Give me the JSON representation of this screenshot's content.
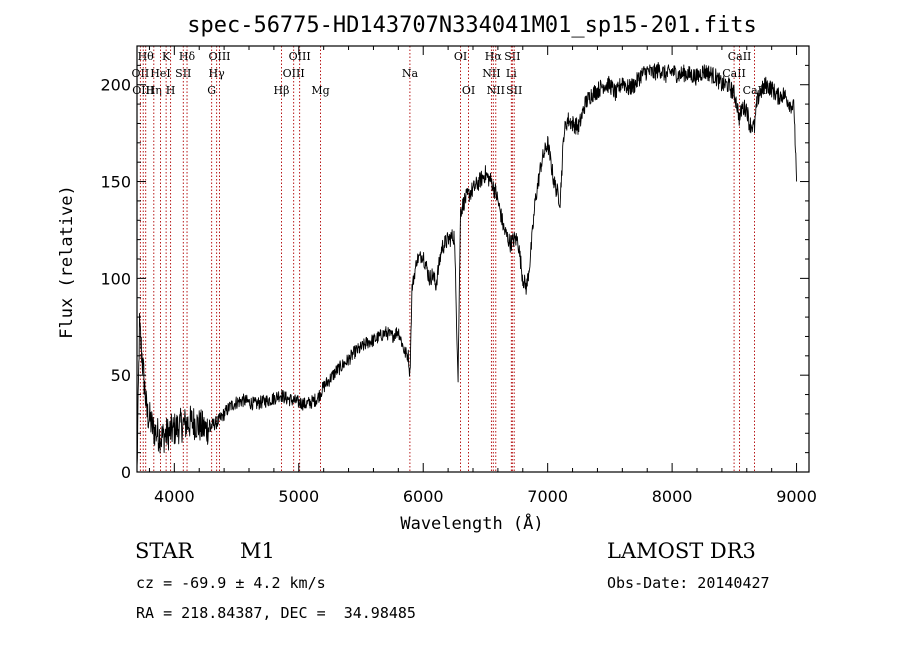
{
  "chart_data": {
    "type": "line",
    "title": "spec-56775-HD143707N334041M01_sp15-201.fits",
    "xlabel": "Wavelength (Å)",
    "ylabel": "Flux (relative)",
    "xlim": [
      3700,
      9100
    ],
    "ylim": [
      0,
      220
    ],
    "xticks": [
      4000,
      5000,
      6000,
      7000,
      8000,
      9000
    ],
    "yticks": [
      0,
      50,
      100,
      150,
      200
    ],
    "series": [
      {
        "x": [
          3700,
          3720,
          3740,
          3760,
          3780,
          3800,
          3830,
          3860,
          3900,
          3950,
          4000,
          4050,
          4100,
          4150,
          4200,
          4250,
          4300,
          4350,
          4400,
          4450,
          4500,
          4550,
          4600,
          4650,
          4700,
          4750,
          4800,
          4850,
          4900,
          4950,
          5000,
          5050,
          5100,
          5150,
          5200,
          5250,
          5300,
          5350,
          5400,
          5450,
          5500,
          5550,
          5600,
          5650,
          5700,
          5750,
          5800,
          5850,
          5880,
          5893,
          5910,
          5950,
          6000,
          6050,
          6080,
          6100,
          6150,
          6200,
          6250,
          6280,
          6300,
          6320,
          6330,
          6350,
          6400,
          6450,
          6500,
          6520,
          6550,
          6563,
          6580,
          6600,
          6650,
          6700,
          6730,
          6760,
          6800,
          6830,
          6860,
          6900,
          6950,
          7000,
          7050,
          7100,
          7130,
          7160,
          7200,
          7250,
          7300,
          7350,
          7400,
          7450,
          7500,
          7550,
          7600,
          7650,
          7700,
          7750,
          7800,
          7850,
          7900,
          7950,
          8000,
          8050,
          8100,
          8150,
          8200,
          8250,
          8300,
          8350,
          8400,
          8450,
          8500,
          8520,
          8542,
          8560,
          8600,
          8620,
          8662,
          8680,
          8700,
          8750,
          8800,
          8850,
          8900,
          8950,
          8980,
          9000
        ],
        "y": [
          0,
          75,
          60,
          45,
          30,
          28,
          22,
          20,
          18,
          20,
          22,
          24,
          25,
          26,
          24,
          22,
          24,
          26,
          30,
          34,
          36,
          37,
          36,
          35,
          36,
          37,
          38,
          40,
          38,
          37,
          36,
          35,
          36,
          38,
          44,
          48,
          52,
          55,
          58,
          62,
          64,
          67,
          68,
          70,
          72,
          70,
          73,
          62,
          60,
          50,
          95,
          110,
          112,
          100,
          102,
          96,
          116,
          120,
          122,
          50,
          135,
          138,
          140,
          142,
          146,
          150,
          154,
          152,
          150,
          147,
          145,
          140,
          125,
          118,
          120,
          120,
          100,
          95,
          110,
          140,
          160,
          170,
          150,
          140,
          175,
          182,
          180,
          178,
          190,
          195,
          197,
          200,
          200,
          195,
          202,
          198,
          200,
          205,
          207,
          206,
          208,
          205,
          207,
          205,
          206,
          205,
          204,
          207,
          206,
          204,
          200,
          200,
          195,
          190,
          182,
          188,
          188,
          180,
          178,
          190,
          195,
          200,
          198,
          194,
          195,
          190,
          188,
          150
        ]
      }
    ],
    "line_markers": [
      {
        "wl": 3727,
        "label": "OII",
        "row": 1
      },
      {
        "wl": 3750,
        "label": "OIII",
        "row": 2
      },
      {
        "wl": 3770,
        "label": "Hθ",
        "row": 0
      },
      {
        "wl": 3835,
        "label": "Hη",
        "row": 2
      },
      {
        "wl": 3889,
        "label": "HeI",
        "row": 1
      },
      {
        "wl": 3934,
        "label": "K",
        "row": 0
      },
      {
        "wl": 3970,
        "label": "H",
        "row": 2
      },
      {
        "wl": 4072,
        "label": "SII",
        "row": 1
      },
      {
        "wl": 4102,
        "label": "Hδ",
        "row": 0
      },
      {
        "wl": 4300,
        "label": "G",
        "row": 2
      },
      {
        "wl": 4340,
        "label": "Hγ",
        "row": 1
      },
      {
        "wl": 4363,
        "label": "OIII",
        "row": 0
      },
      {
        "wl": 4861,
        "label": "Hβ",
        "row": 2
      },
      {
        "wl": 4959,
        "label": "OIII",
        "row": 1
      },
      {
        "wl": 5007,
        "label": "OIII",
        "row": 0
      },
      {
        "wl": 5175,
        "label": "Mg",
        "row": 2
      },
      {
        "wl": 5893,
        "label": "Na",
        "row": 1
      },
      {
        "wl": 6300,
        "label": "OI",
        "row": 0
      },
      {
        "wl": 6364,
        "label": "OI",
        "row": 2
      },
      {
        "wl": 6548,
        "label": "NII",
        "row": 1
      },
      {
        "wl": 6563,
        "label": "Hα",
        "row": 0
      },
      {
        "wl": 6583,
        "label": "NII",
        "row": 2
      },
      {
        "wl": 6708,
        "label": "Li",
        "row": 1
      },
      {
        "wl": 6716,
        "label": "SII",
        "row": 0
      },
      {
        "wl": 6731,
        "label": "SII",
        "row": 2
      },
      {
        "wl": 8498,
        "label": "CaII",
        "row": 1
      },
      {
        "wl": 8542,
        "label": "CaII",
        "row": 0
      },
      {
        "wl": 8662,
        "label": "CaII",
        "row": 2
      }
    ],
    "grid": false
  },
  "info": {
    "object_class": "STAR",
    "subclass": "M1",
    "survey": "LAMOST DR3",
    "cz": "cz = -69.9 ± 4.2 km/s",
    "obs_date": "Obs-Date: 20140427",
    "coords": "RA = 218.84387, DEC =  34.98485"
  }
}
